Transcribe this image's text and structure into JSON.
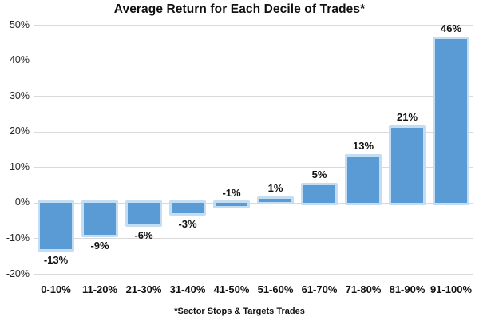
{
  "page": {
    "background": "#ffffff"
  },
  "chart_data": {
    "type": "bar",
    "title": "Average Return for Each Decile of Trades*",
    "footnote": "*Sector Stops & Targets Trades",
    "categories": [
      "0-10%",
      "11-20%",
      "21-30%",
      "31-40%",
      "41-50%",
      "51-60%",
      "61-70%",
      "71-80%",
      "81-90%",
      "91-100%"
    ],
    "values": [
      -13,
      -9,
      -6,
      -3,
      -1,
      1,
      5,
      13,
      21,
      46
    ],
    "data_labels": [
      "-13%",
      "-9%",
      "-6%",
      "-3%",
      "-1%",
      "1%",
      "5%",
      "13%",
      "21%",
      "46%"
    ],
    "y_ticks": [
      {
        "value": 50,
        "label": "50%"
      },
      {
        "value": 40,
        "label": "40%"
      },
      {
        "value": 30,
        "label": "30%"
      },
      {
        "value": 20,
        "label": "20%"
      },
      {
        "value": 10,
        "label": "10%"
      },
      {
        "value": 0,
        "label": "0%"
      },
      {
        "value": -10,
        "label": "-10%"
      },
      {
        "value": -20,
        "label": "-20%"
      }
    ],
    "ylim": [
      -20,
      50
    ],
    "xlabel": "",
    "ylabel": "",
    "grid": true,
    "legend_position": "none",
    "colors": {
      "bar_fill": "#5b9bd5",
      "bar_border": "#c3ddf3",
      "gridline": "#d9d9d9",
      "text": "#111111"
    }
  }
}
